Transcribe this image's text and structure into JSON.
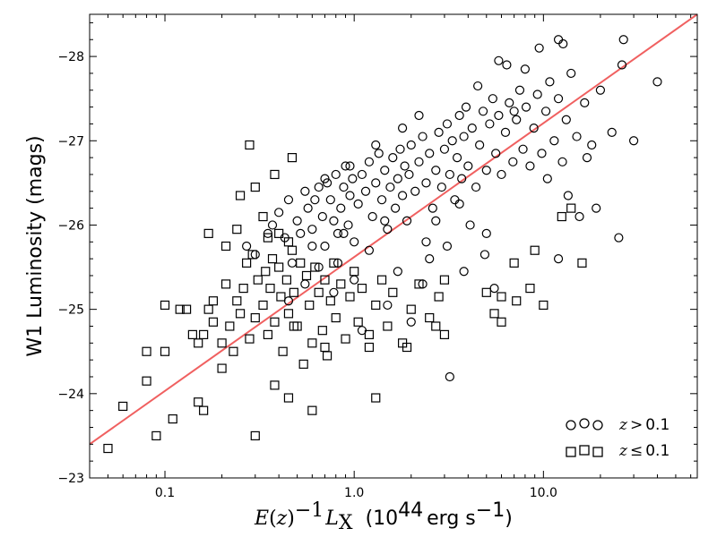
{
  "chart_data": {
    "type": "scatter",
    "title": "",
    "xlabel": "E(z)^-1 L_X (10^44 erg s^-1)",
    "ylabel": "W1 Luminosity (mags)",
    "xscale": "log",
    "xlim": [
      0.04,
      65
    ],
    "ylim": [
      -23,
      -28.5
    ],
    "x_ticks": [
      0.1,
      1.0,
      10.0
    ],
    "x_tick_labels": [
      "0.1",
      "1.0",
      "10.0"
    ],
    "y_ticks": [
      -23,
      -24,
      -25,
      -26,
      -27,
      -28
    ],
    "y_tick_labels": [
      "−23",
      "−24",
      "−25",
      "−26",
      "−27",
      "−28"
    ],
    "fit_line": {
      "name": "best fit",
      "color": "#f06060",
      "x": [
        0.04,
        65
      ],
      "y": [
        -23.4,
        -28.5
      ]
    },
    "legend": {
      "placement": "lower-right",
      "entries": [
        {
          "marker": "circle",
          "label_var": "z",
          "label_op": ">",
          "label_val": "0.1"
        },
        {
          "marker": "square",
          "label_var": "z",
          "label_op": "≤",
          "label_val": "0.1"
        }
      ]
    },
    "series": [
      {
        "name": "z > 0.1",
        "marker": "circle",
        "points": [
          [
            0.27,
            -25.75
          ],
          [
            0.3,
            -25.65
          ],
          [
            0.35,
            -25.9
          ],
          [
            0.37,
            -26.0
          ],
          [
            0.4,
            -26.15
          ],
          [
            0.43,
            -25.85
          ],
          [
            0.45,
            -26.3
          ],
          [
            0.47,
            -25.55
          ],
          [
            0.5,
            -26.05
          ],
          [
            0.52,
            -25.9
          ],
          [
            0.55,
            -26.4
          ],
          [
            0.57,
            -26.2
          ],
          [
            0.6,
            -25.95
          ],
          [
            0.62,
            -26.3
          ],
          [
            0.65,
            -26.45
          ],
          [
            0.68,
            -26.1
          ],
          [
            0.7,
            -25.75
          ],
          [
            0.72,
            -26.5
          ],
          [
            0.75,
            -26.3
          ],
          [
            0.78,
            -26.05
          ],
          [
            0.8,
            -26.6
          ],
          [
            0.82,
            -25.9
          ],
          [
            0.85,
            -26.2
          ],
          [
            0.88,
            -26.45
          ],
          [
            0.9,
            -26.7
          ],
          [
            0.93,
            -26.0
          ],
          [
            0.95,
            -26.35
          ],
          [
            0.98,
            -26.55
          ],
          [
            1.0,
            -25.8
          ],
          [
            1.05,
            -26.25
          ],
          [
            1.1,
            -26.6
          ],
          [
            1.15,
            -26.4
          ],
          [
            1.2,
            -26.75
          ],
          [
            1.25,
            -26.1
          ],
          [
            1.3,
            -26.5
          ],
          [
            1.35,
            -26.85
          ],
          [
            1.4,
            -26.3
          ],
          [
            1.45,
            -26.65
          ],
          [
            1.5,
            -25.95
          ],
          [
            1.55,
            -26.45
          ],
          [
            1.6,
            -26.8
          ],
          [
            1.65,
            -26.2
          ],
          [
            1.7,
            -26.55
          ],
          [
            1.75,
            -26.9
          ],
          [
            1.8,
            -26.35
          ],
          [
            1.85,
            -26.7
          ],
          [
            1.9,
            -26.05
          ],
          [
            1.95,
            -26.6
          ],
          [
            2.0,
            -26.95
          ],
          [
            2.1,
            -26.4
          ],
          [
            2.2,
            -26.75
          ],
          [
            2.3,
            -27.05
          ],
          [
            2.4,
            -26.5
          ],
          [
            2.5,
            -26.85
          ],
          [
            2.6,
            -26.2
          ],
          [
            2.7,
            -26.65
          ],
          [
            2.8,
            -27.1
          ],
          [
            2.9,
            -26.45
          ],
          [
            3.0,
            -26.9
          ],
          [
            3.1,
            -27.2
          ],
          [
            3.2,
            -26.6
          ],
          [
            3.3,
            -27.0
          ],
          [
            3.4,
            -26.3
          ],
          [
            3.5,
            -26.8
          ],
          [
            3.6,
            -27.3
          ],
          [
            3.7,
            -26.55
          ],
          [
            3.8,
            -27.05
          ],
          [
            3.9,
            -27.4
          ],
          [
            4.0,
            -26.7
          ],
          [
            4.2,
            -27.15
          ],
          [
            4.4,
            -26.45
          ],
          [
            4.6,
            -26.95
          ],
          [
            4.8,
            -27.35
          ],
          [
            5.0,
            -26.65
          ],
          [
            5.2,
            -27.2
          ],
          [
            5.4,
            -27.5
          ],
          [
            5.6,
            -26.85
          ],
          [
            5.8,
            -27.3
          ],
          [
            6.0,
            -26.6
          ],
          [
            6.3,
            -27.1
          ],
          [
            6.6,
            -27.45
          ],
          [
            6.9,
            -26.75
          ],
          [
            7.2,
            -27.25
          ],
          [
            7.5,
            -27.6
          ],
          [
            7.8,
            -26.9
          ],
          [
            8.1,
            -27.4
          ],
          [
            8.5,
            -26.7
          ],
          [
            8.9,
            -27.15
          ],
          [
            9.3,
            -27.55
          ],
          [
            9.8,
            -26.85
          ],
          [
            10.3,
            -27.35
          ],
          [
            10.8,
            -27.7
          ],
          [
            11.4,
            -27.0
          ],
          [
            12.0,
            -27.5
          ],
          [
            12.6,
            -26.75
          ],
          [
            13.2,
            -27.25
          ],
          [
            14.0,
            -27.8
          ],
          [
            15.0,
            -27.05
          ],
          [
            16.5,
            -27.45
          ],
          [
            18.0,
            -26.95
          ],
          [
            20.0,
            -27.6
          ],
          [
            23.0,
            -27.1
          ],
          [
            26.0,
            -27.9
          ],
          [
            30.0,
            -27.0
          ],
          [
            12.0,
            -28.2
          ],
          [
            12.7,
            -28.15
          ],
          [
            26.5,
            -28.2
          ],
          [
            40.0,
            -27.7
          ],
          [
            25.0,
            -25.85
          ],
          [
            12.0,
            -25.6
          ],
          [
            3.2,
            -24.2
          ],
          [
            4.9,
            -25.65
          ],
          [
            2.0,
            -24.85
          ],
          [
            1.1,
            -24.75
          ],
          [
            1.5,
            -25.05
          ],
          [
            3.8,
            -25.45
          ],
          [
            2.5,
            -25.6
          ],
          [
            5.5,
            -25.25
          ],
          [
            0.82,
            -25.55
          ],
          [
            0.6,
            -25.75
          ],
          [
            1.3,
            -26.95
          ],
          [
            1.8,
            -27.15
          ],
          [
            0.95,
            -26.7
          ],
          [
            0.7,
            -26.55
          ],
          [
            2.2,
            -27.3
          ],
          [
            4.5,
            -27.65
          ],
          [
            6.4,
            -27.9
          ],
          [
            8.0,
            -27.85
          ],
          [
            9.5,
            -28.1
          ],
          [
            5.8,
            -27.95
          ],
          [
            7.0,
            -27.35
          ],
          [
            10.5,
            -26.55
          ],
          [
            13.5,
            -26.35
          ],
          [
            15.5,
            -26.1
          ],
          [
            17.0,
            -26.8
          ],
          [
            19.0,
            -26.2
          ],
          [
            1.45,
            -26.05
          ],
          [
            2.4,
            -25.8
          ],
          [
            3.1,
            -25.75
          ],
          [
            4.1,
            -26.0
          ],
          [
            2.7,
            -26.05
          ],
          [
            3.6,
            -26.25
          ],
          [
            1.2,
            -25.7
          ],
          [
            0.88,
            -25.9
          ],
          [
            0.55,
            -25.3
          ],
          [
            0.65,
            -25.5
          ],
          [
            0.45,
            -25.1
          ],
          [
            0.78,
            -25.2
          ],
          [
            1.0,
            -25.35
          ],
          [
            1.7,
            -25.45
          ],
          [
            2.3,
            -25.3
          ],
          [
            5.0,
            -25.9
          ]
        ]
      },
      {
        "name": "z ≤ 0.1",
        "marker": "square",
        "points": [
          [
            0.05,
            -23.35
          ],
          [
            0.06,
            -23.85
          ],
          [
            0.08,
            -24.5
          ],
          [
            0.08,
            -24.15
          ],
          [
            0.09,
            -23.5
          ],
          [
            0.1,
            -24.5
          ],
          [
            0.1,
            -25.05
          ],
          [
            0.11,
            -23.7
          ],
          [
            0.12,
            -25.0
          ],
          [
            0.13,
            -25.0
          ],
          [
            0.14,
            -24.7
          ],
          [
            0.15,
            -24.6
          ],
          [
            0.15,
            -23.9
          ],
          [
            0.16,
            -23.8
          ],
          [
            0.16,
            -24.7
          ],
          [
            0.17,
            -25.0
          ],
          [
            0.18,
            -25.1
          ],
          [
            0.18,
            -24.85
          ],
          [
            0.2,
            -24.6
          ],
          [
            0.2,
            -24.3
          ],
          [
            0.21,
            -25.3
          ],
          [
            0.22,
            -24.8
          ],
          [
            0.23,
            -24.5
          ],
          [
            0.24,
            -25.1
          ],
          [
            0.25,
            -24.95
          ],
          [
            0.26,
            -25.25
          ],
          [
            0.27,
            -25.55
          ],
          [
            0.28,
            -24.65
          ],
          [
            0.29,
            -25.65
          ],
          [
            0.3,
            -24.9
          ],
          [
            0.31,
            -25.35
          ],
          [
            0.33,
            -25.05
          ],
          [
            0.34,
            -25.45
          ],
          [
            0.35,
            -24.7
          ],
          [
            0.36,
            -25.25
          ],
          [
            0.37,
            -25.6
          ],
          [
            0.38,
            -24.85
          ],
          [
            0.4,
            -25.5
          ],
          [
            0.41,
            -25.15
          ],
          [
            0.42,
            -24.5
          ],
          [
            0.44,
            -25.35
          ],
          [
            0.45,
            -24.95
          ],
          [
            0.47,
            -25.7
          ],
          [
            0.48,
            -25.2
          ],
          [
            0.5,
            -24.8
          ],
          [
            0.52,
            -25.55
          ],
          [
            0.54,
            -24.35
          ],
          [
            0.56,
            -25.4
          ],
          [
            0.58,
            -25.05
          ],
          [
            0.6,
            -24.6
          ],
          [
            0.62,
            -25.5
          ],
          [
            0.65,
            -25.2
          ],
          [
            0.68,
            -24.75
          ],
          [
            0.7,
            -25.35
          ],
          [
            0.72,
            -24.45
          ],
          [
            0.75,
            -25.1
          ],
          [
            0.78,
            -25.55
          ],
          [
            0.8,
            -24.9
          ],
          [
            0.85,
            -25.3
          ],
          [
            0.9,
            -24.65
          ],
          [
            0.95,
            -25.15
          ],
          [
            1.0,
            -25.45
          ],
          [
            1.05,
            -24.85
          ],
          [
            1.1,
            -25.25
          ],
          [
            1.2,
            -24.7
          ],
          [
            1.3,
            -25.05
          ],
          [
            1.4,
            -25.35
          ],
          [
            1.5,
            -24.8
          ],
          [
            1.6,
            -25.2
          ],
          [
            1.8,
            -24.6
          ],
          [
            2.0,
            -25.0
          ],
          [
            2.2,
            -25.3
          ],
          [
            2.5,
            -24.9
          ],
          [
            2.8,
            -25.15
          ],
          [
            3.0,
            -25.35
          ],
          [
            0.28,
            -26.95
          ],
          [
            0.47,
            -26.8
          ],
          [
            0.38,
            -26.6
          ],
          [
            0.3,
            -26.45
          ],
          [
            0.25,
            -26.35
          ],
          [
            0.33,
            -26.1
          ],
          [
            0.24,
            -25.95
          ],
          [
            0.4,
            -25.9
          ],
          [
            0.21,
            -25.75
          ],
          [
            0.35,
            -25.85
          ],
          [
            0.17,
            -25.9
          ],
          [
            0.45,
            -25.8
          ],
          [
            0.3,
            -23.5
          ],
          [
            0.38,
            -24.1
          ],
          [
            0.6,
            -23.8
          ],
          [
            0.7,
            -24.55
          ],
          [
            0.45,
            -23.95
          ],
          [
            1.3,
            -23.95
          ],
          [
            5.0,
            -25.2
          ],
          [
            6.0,
            -25.15
          ],
          [
            7.2,
            -25.1
          ],
          [
            8.5,
            -25.25
          ],
          [
            10.0,
            -25.05
          ],
          [
            12.5,
            -26.1
          ],
          [
            14.0,
            -26.2
          ],
          [
            16.0,
            -25.55
          ],
          [
            9.0,
            -25.7
          ],
          [
            7.0,
            -25.55
          ],
          [
            6.0,
            -24.85
          ],
          [
            5.5,
            -24.95
          ],
          [
            3.0,
            -24.7
          ],
          [
            2.7,
            -24.8
          ],
          [
            1.9,
            -24.55
          ],
          [
            1.2,
            -24.55
          ],
          [
            0.48,
            -24.8
          ]
        ]
      }
    ]
  }
}
